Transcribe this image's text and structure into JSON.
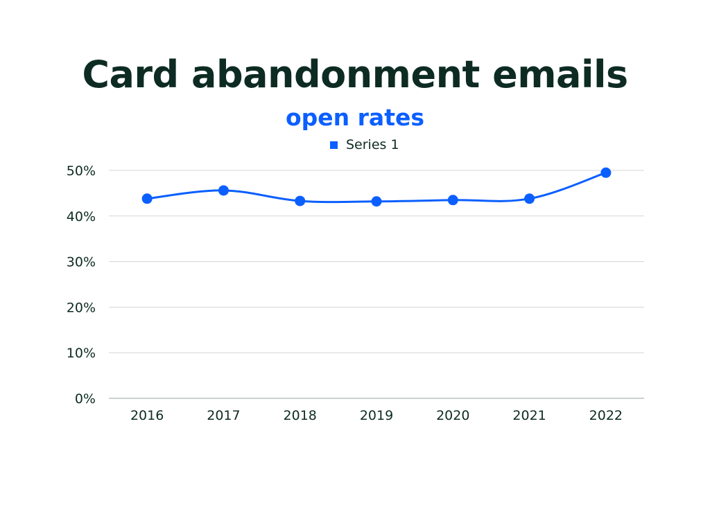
{
  "chart_data": {
    "type": "line",
    "title": "Card abandonment emails",
    "subtitle": "open rates",
    "categories": [
      "2016",
      "2017",
      "2018",
      "2019",
      "2020",
      "2021",
      "2022"
    ],
    "series": [
      {
        "name": "Series 1",
        "values": [
          43.8,
          45.6,
          43.3,
          43.2,
          43.5,
          43.8,
          49.5
        ],
        "color": "#0b5fff"
      }
    ],
    "ylim": [
      0,
      50
    ],
    "yticks": [
      "0%",
      "10%",
      "20%",
      "30%",
      "40%",
      "50%"
    ],
    "ytick_values": [
      0,
      10,
      20,
      30,
      40,
      50
    ],
    "xlabel": "",
    "ylabel": "",
    "grid": true,
    "legend": "top-center",
    "smooth": true
  }
}
